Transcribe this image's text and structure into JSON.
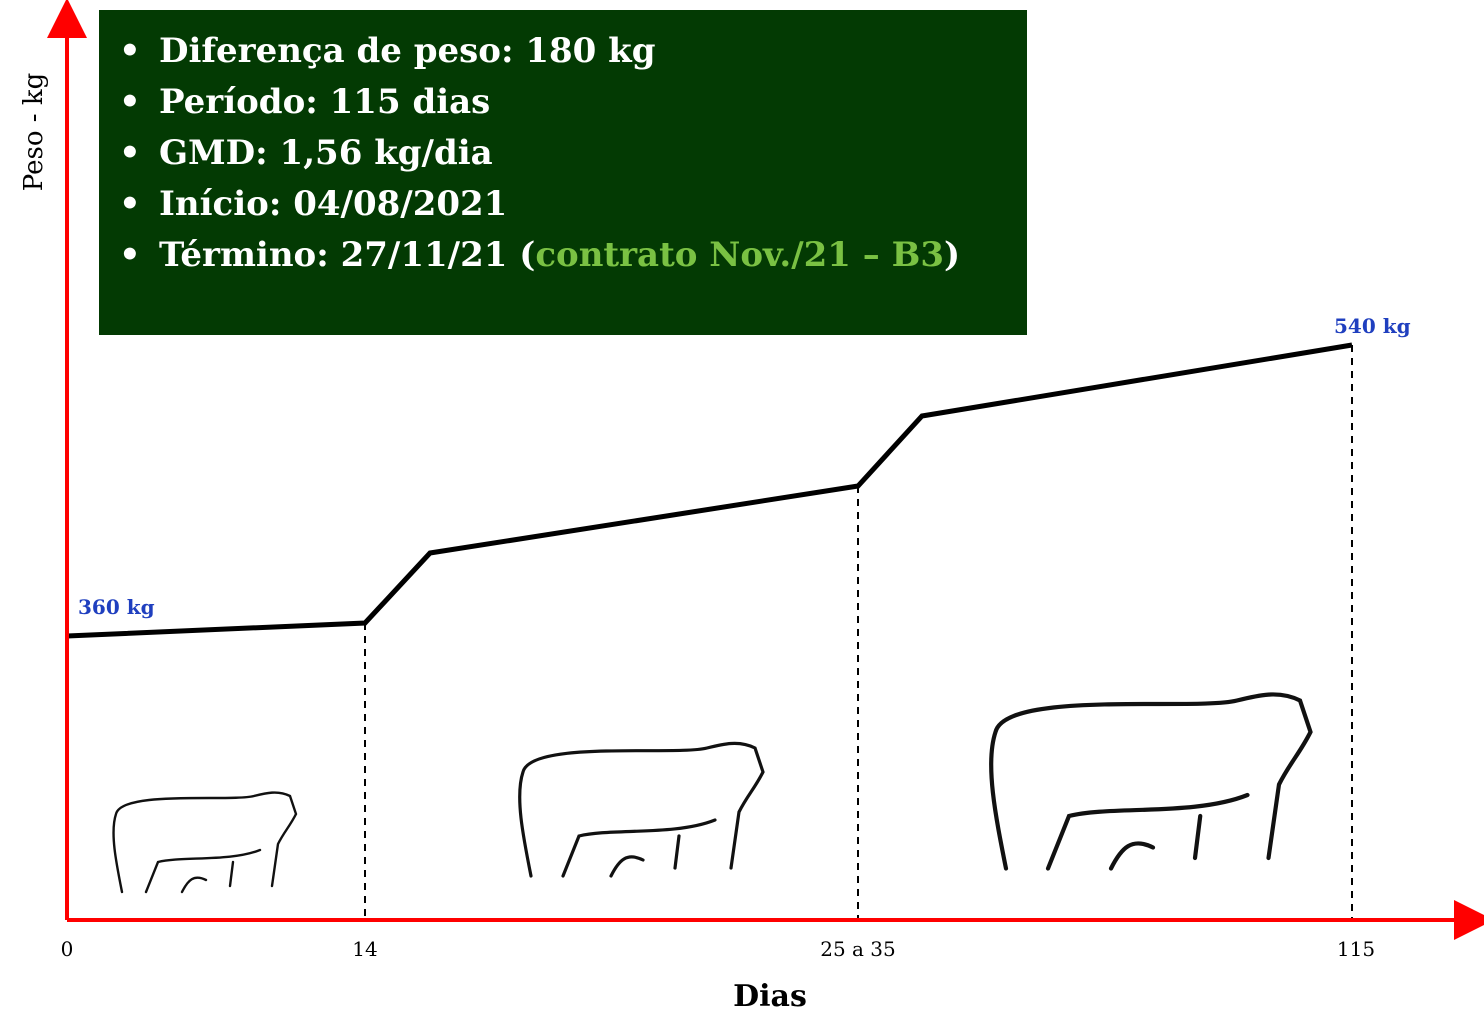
{
  "axes": {
    "y_label": "Peso - kg",
    "x_label": "Dias",
    "x_ticks": [
      "0",
      "14",
      "25 a 35",
      "115"
    ]
  },
  "labels": {
    "start": "360 kg",
    "end": "540 kg"
  },
  "info_box": {
    "items": [
      "Diferença de peso: 180 kg",
      "Período: 115 dias",
      "GMD: 1,56 kg/dia",
      "Início: 04/08/2021"
    ],
    "last_item": {
      "text": "Término: 27/11/21 (",
      "highlight": "contrato Nov./21 – B3",
      "close": ")"
    }
  }
}
